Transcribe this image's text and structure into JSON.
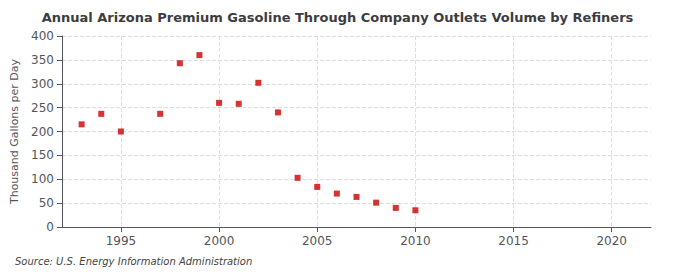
{
  "chart_data": {
    "type": "scatter",
    "title": "Annual Arizona Premium Gasoline Through Company Outlets Volume by Refiners",
    "ylabel": "Thousand Gallons per Day",
    "annotation": "Source: U.S. Energy Information Administration",
    "x": [
      1993,
      1994,
      1995,
      1997,
      1998,
      1999,
      2000,
      2001,
      2002,
      2003,
      2004,
      2005,
      2006,
      2007,
      2008,
      2009,
      2010
    ],
    "values": [
      215,
      237,
      200,
      237,
      343,
      360,
      260,
      258,
      302,
      240,
      103,
      84,
      70,
      63,
      51,
      40,
      35
    ],
    "color": "#cc0000",
    "marker": "square",
    "xlim": [
      1992,
      2022
    ],
    "ylim": [
      0,
      400
    ],
    "xticks": [
      1995,
      2000,
      2005,
      2010,
      2015,
      2020
    ],
    "yticks": [
      0,
      50,
      100,
      150,
      200,
      250,
      300,
      350,
      400
    ],
    "grid": true
  }
}
